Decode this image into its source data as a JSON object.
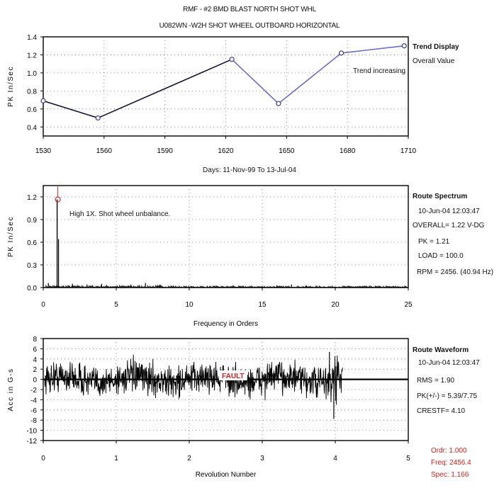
{
  "header": {
    "line1": "RMF  - #2 BMD BLAST NORTH  SHOT WHL",
    "line2": "U082WN   -W2H   SHOT WHEEL OUTBOARD HORIZONTAL"
  },
  "trend": {
    "side_title": "Trend Display",
    "side_sub": "Overall Value",
    "note": "Trend increasing",
    "date_range_label": "Days:  11-Nov-99  To  13-Jul-04"
  },
  "spectrum": {
    "side_title": "Route Spectrum",
    "date": "10-Jun-04  12:03:47",
    "overall": "OVERALL= 1.22 V-DG",
    "pk": "PK  =  1.21",
    "load": "LOAD = 100.0",
    "rpm": "RPM = 2456. (40.94 Hz)",
    "annotation": "High 1X.  Shot wheel unbalance."
  },
  "waveform": {
    "side_title": "Route Waveform",
    "date": "10-Jun-04  12:03:47",
    "rms": "RMS = 1.90",
    "pk_pp": "PK(+/-) = 5.39/7.75",
    "crest": "CRESTF= 4.10",
    "fault_label": "FAULT"
  },
  "cursor": {
    "ordr": "Ordr:   1.000",
    "freq": "Freq:  2456.4",
    "spec": "Spec:   1.166"
  },
  "colors": {
    "trend_line": "#6b6bc9",
    "trend_line_dark": "#111133",
    "trace": "#000000",
    "cursor_text": "#d42020",
    "fault": "#d42020",
    "marker": "#c03030"
  },
  "chart_data": [
    {
      "type": "line",
      "title": "",
      "xlabel": "Days:  11-Nov-99  To  13-Jul-04",
      "ylabel": "PK In/Sec",
      "xlim": [
        1530,
        1710
      ],
      "ylim": [
        0.3,
        1.4
      ],
      "x_ticks": [
        1530,
        1560,
        1590,
        1620,
        1650,
        1680,
        1710
      ],
      "y_ticks": [
        0.4,
        0.6,
        0.8,
        1.0,
        1.2,
        1.4
      ],
      "grid": true,
      "series": [
        {
          "x": [
            1530,
            1557,
            1623,
            1646,
            1677,
            1708
          ],
          "y": [
            0.69,
            0.5,
            1.15,
            0.66,
            1.22,
            1.3
          ]
        }
      ]
    },
    {
      "type": "line",
      "title": "",
      "xlabel": "Frequency in Orders",
      "ylabel": "PK In/Sec",
      "xlim": [
        0,
        25
      ],
      "ylim": [
        0,
        1.35
      ],
      "x_ticks": [
        0,
        5,
        10,
        15,
        20,
        25
      ],
      "y_ticks": [
        0,
        0.3,
        0.6,
        0.9,
        1.2
      ],
      "grid": true,
      "peak": {
        "x": 1.0,
        "y": 1.166
      },
      "harmonics": [
        {
          "x": 0.35,
          "y": 0.06
        },
        {
          "x": 2.0,
          "y": 0.05
        },
        {
          "x": 3.0,
          "y": 0.04
        },
        {
          "x": 4.0,
          "y": 0.05
        },
        {
          "x": 6.0,
          "y": 0.04
        },
        {
          "x": 7.0,
          "y": 0.06
        },
        {
          "x": 8.0,
          "y": 0.04
        },
        {
          "x": 13.0,
          "y": 0.03
        },
        {
          "x": 16.0,
          "y": 0.03
        },
        {
          "x": 17.0,
          "y": 0.04
        },
        {
          "x": 18.0,
          "y": 0.03
        }
      ]
    },
    {
      "type": "line",
      "title": "",
      "xlabel": "Revolution Number",
      "ylabel": "Acc in G-s",
      "xlim": [
        0,
        5
      ],
      "ylim": [
        -12,
        8
      ],
      "x_ticks": [
        0,
        1,
        2,
        3,
        4,
        5
      ],
      "y_ticks": [
        -12,
        -10,
        -8,
        -6,
        -4,
        -2,
        0,
        2,
        4,
        6,
        8
      ],
      "grid": true,
      "signal_end_rev": 4.1,
      "pk_plus": 5.39,
      "pk_minus": -7.75,
      "rms": 1.9
    }
  ]
}
